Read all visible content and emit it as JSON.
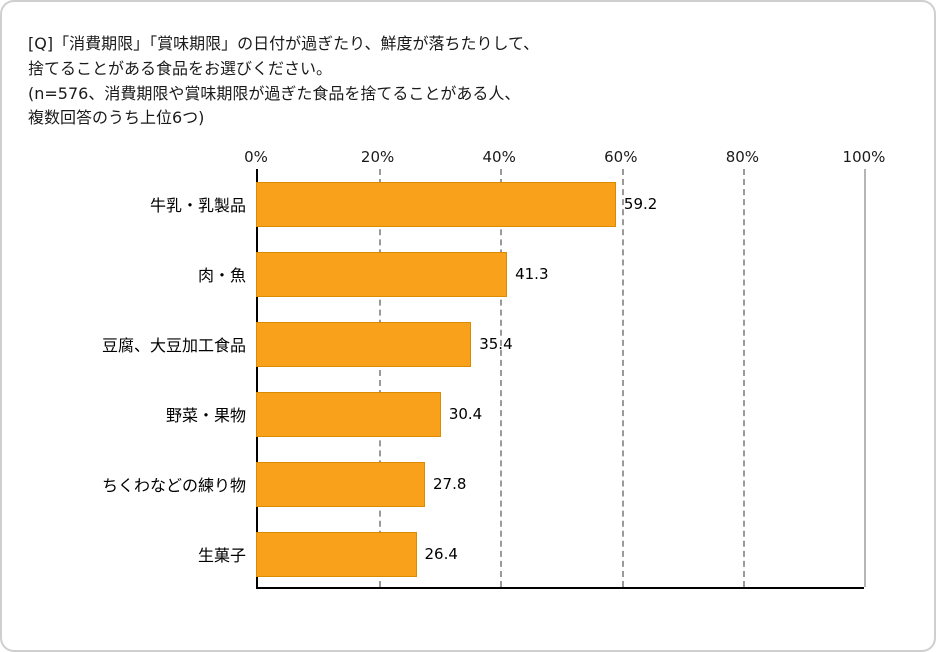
{
  "frame": {
    "background": "#ffffff",
    "border_color": "#cfcfcf"
  },
  "title": {
    "lines": [
      "[Q]「消費期限」「賞味期限」の日付が過ぎたり、鮮度が落ちたりして、",
      "捨てることがある食品をお選びください。",
      "(n=576、消費期限や賞味期限が過ぎた食品を捨てることがある人、",
      "複数回答のうち上位6つ)"
    ]
  },
  "chart_data": {
    "type": "bar",
    "orientation": "horizontal",
    "title": "",
    "xlabel": "",
    "ylabel": "",
    "categories": [
      "牛乳・乳製品",
      "肉・魚",
      "豆腐、大豆加工食品",
      "野菜・果物",
      "ちくわなどの練り物",
      "生菓子"
    ],
    "values": [
      59.2,
      41.3,
      35.4,
      30.4,
      27.8,
      26.4
    ],
    "value_labels": [
      "59.2",
      "41.3",
      "35.4",
      "30.4",
      "27.8",
      "26.4"
    ],
    "x_ticks": [
      "0%",
      "20%",
      "40%",
      "60%",
      "80%",
      "100%"
    ],
    "x_tick_values": [
      0,
      20,
      40,
      60,
      80,
      100
    ],
    "xlim": [
      0,
      100
    ],
    "grid": "dashed-vertical",
    "legend": "none",
    "bar_color": "#f9a11b",
    "bar_border_color": "#db8b00"
  }
}
